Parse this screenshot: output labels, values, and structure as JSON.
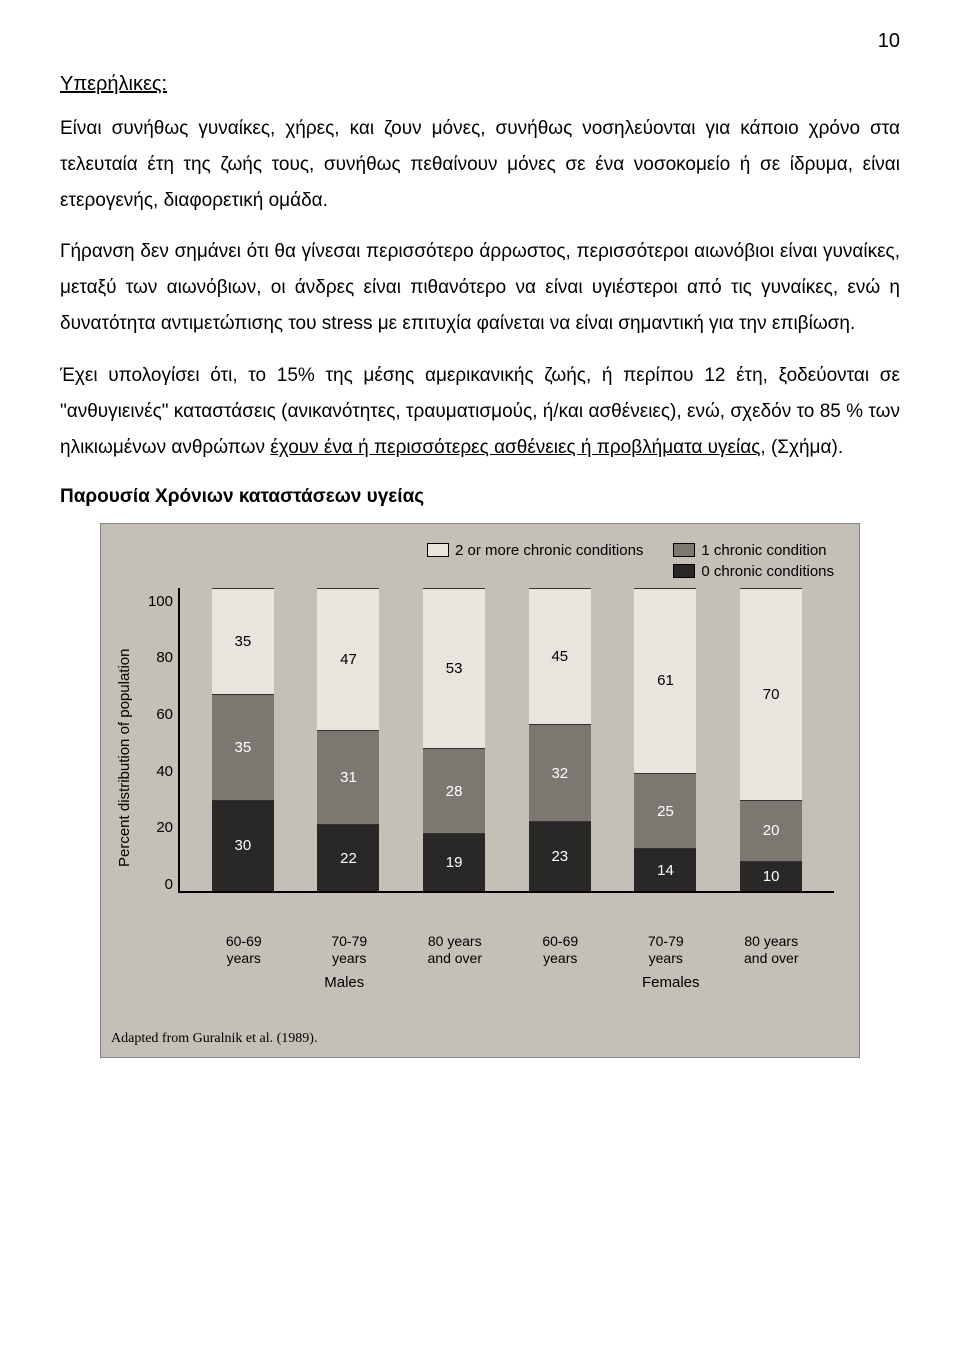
{
  "page_number": "10",
  "section_title": "Υπερήλικες:",
  "paragraph_1": "Είναι συνήθως γυναίκες, χήρες, και ζουν μόνες, συνήθως νοσηλεύονται για κάποιο χρόνο στα τελευταία έτη της ζωής τους, συνήθως πεθαίνουν μόνες σε ένα νοσοκομείο ή σε ίδρυμα, είναι ετερογενής, διαφορετική ομάδα.",
  "paragraph_2": "Γήρανση δεν σημάνει ότι θα γίνεσαι περισσότερο άρρωστος, περισσότεροι αιωνόβιοι είναι γυναίκες, μεταξύ των αιωνόβιων, οι άνδρες είναι πιθανότερο να είναι υγιέστεροι από τις γυναίκες, ενώ η δυνατότητα αντιμετώπισης του stress με επιτυχία φαίνεται να είναι σημαντική για την επιβίωση.",
  "paragraph_3_a": "Έχει υπολογίσει ότι, το 15% της μέσης αμερικανικής ζωής, ή περίπου 12 έτη, ξοδεύονται σε \"ανθυγιεινές\" καταστάσεις (ανικανότητες, τραυματισμούς, ή/και ασθένειες), ενώ, σχεδόν το 85 % των ηλικιωμένων ανθρώπων ",
  "paragraph_3_underline_1": "έχουν ένα ή περισσότερες ασθένειες ή προβλήματα υγείας",
  "paragraph_3_b": ", (Σχήμα).",
  "chart_title": "Παρουσία Χρόνιων καταστάσεων υγείας",
  "chart": {
    "legend": {
      "two_or_more": "2 or more chronic conditions",
      "one": "1 chronic condition",
      "zero": "0 chronic conditions"
    },
    "legend_colors": {
      "two_or_more": "#e8e5de",
      "one": "#7a7870",
      "zero": "#2a2826"
    },
    "y_axis_label": "Percent distribution of population",
    "y_ticks": [
      "100",
      "80",
      "60",
      "40",
      "20",
      "0"
    ],
    "y_max": 100,
    "bars": [
      {
        "label_top": "60-69",
        "label_bot": "years",
        "two": 35,
        "one": 35,
        "zero": 30
      },
      {
        "label_top": "70-79",
        "label_bot": "years",
        "two": 47,
        "one": 31,
        "zero": 22
      },
      {
        "label_top": "80 years",
        "label_bot": "and over",
        "two": 53,
        "one": 28,
        "zero": 19
      },
      {
        "label_top": "60-69",
        "label_bot": "years",
        "two": 45,
        "one": 32,
        "zero": 23
      },
      {
        "label_top": "70-79",
        "label_bot": "years",
        "two": 61,
        "one": 25,
        "zero": 14
      },
      {
        "label_top": "80 years",
        "label_bot": "and over",
        "two": 70,
        "one": 20,
        "zero": 10
      }
    ],
    "groups": {
      "males": "Males",
      "females": "Females"
    },
    "source": "Adapted from Guralnik et al. (1989)."
  }
}
